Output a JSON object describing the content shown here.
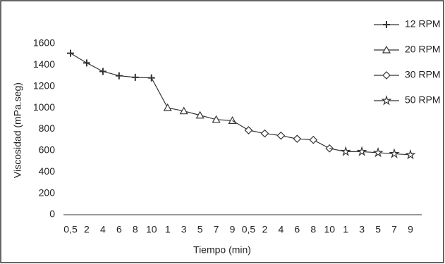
{
  "chart_data": {
    "type": "line",
    "x_label": "Tiempo (min)",
    "y_label": "Viscosidad (mPa.seg)",
    "categories": [
      "0,5",
      "2",
      "4",
      "6",
      "8",
      "10",
      "1",
      "3",
      "5",
      "7",
      "9",
      "0,5",
      "2",
      "4",
      "6",
      "8",
      "10",
      "1",
      "3",
      "5",
      "7",
      "9"
    ],
    "series": [
      {
        "name": "12 RPM",
        "color": "#333333",
        "marker": "plus",
        "values": [
          1510,
          1420,
          1340,
          1300,
          1285,
          1280,
          null,
          null,
          null,
          null,
          null,
          null,
          null,
          null,
          null,
          null,
          null,
          null,
          null,
          null,
          null,
          null
        ]
      },
      {
        "name": "20 RPM",
        "color": "#333333",
        "marker": "triangle",
        "values": [
          null,
          null,
          null,
          null,
          null,
          null,
          1000,
          970,
          930,
          890,
          880,
          null,
          null,
          null,
          null,
          null,
          null,
          null,
          null,
          null,
          null,
          null
        ]
      },
      {
        "name": "30 RPM",
        "color": "#333333",
        "marker": "diamond",
        "values": [
          null,
          null,
          null,
          null,
          null,
          null,
          null,
          null,
          null,
          null,
          null,
          790,
          760,
          740,
          710,
          700,
          620,
          null,
          null,
          null,
          null,
          null
        ]
      },
      {
        "name": "50 RPM",
        "color": "#333333",
        "marker": "star",
        "values": [
          null,
          null,
          null,
          null,
          null,
          null,
          null,
          null,
          null,
          null,
          null,
          null,
          null,
          null,
          null,
          null,
          null,
          590,
          590,
          580,
          570,
          560
        ]
      }
    ],
    "ylim": [
      0,
      1600
    ],
    "yticks": [
      0,
      200,
      400,
      600,
      800,
      1000,
      1200,
      1400,
      1600
    ],
    "grid": false
  }
}
